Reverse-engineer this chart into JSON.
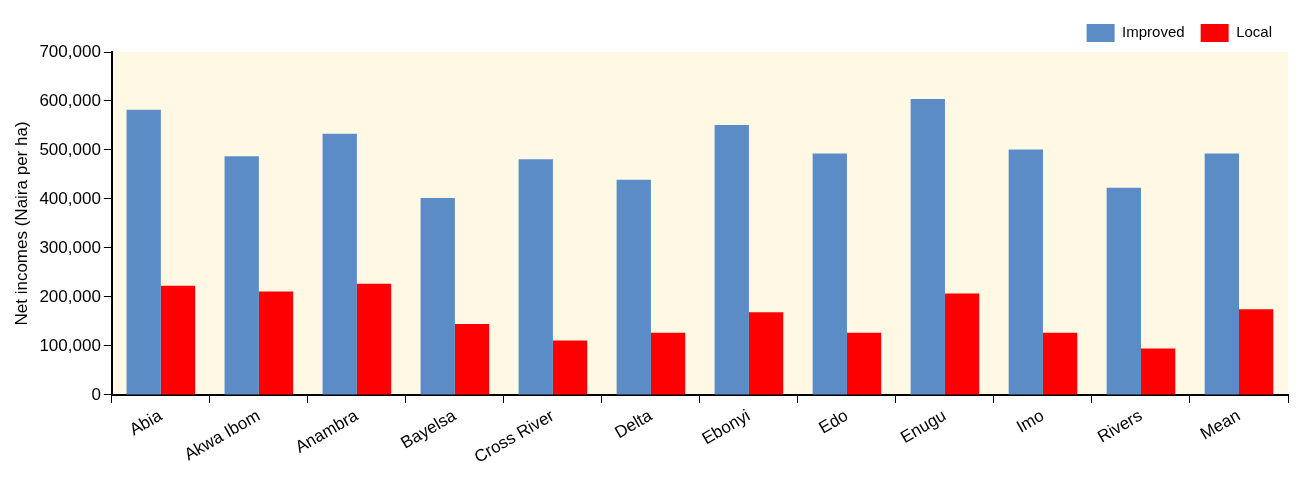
{
  "chart_data": {
    "type": "bar",
    "ylabel": "Net incomes (Naira per ha)",
    "categories": [
      "Abia",
      "Akwa Ibom",
      "Anambra",
      "Bayelsa",
      "Cross River",
      "Delta",
      "Ebonyi",
      "Edo",
      "Enugu",
      "Imo",
      "Rivers",
      "Mean"
    ],
    "series": [
      {
        "name": "Improved",
        "color": "#5b8cc6",
        "values": [
          582000,
          487000,
          533000,
          402000,
          481000,
          439000,
          551000,
          493000,
          604000,
          501000,
          423000,
          493000
        ]
      },
      {
        "name": "Local",
        "color": "#ff0000",
        "values": [
          223000,
          211000,
          227000,
          145000,
          111000,
          127000,
          169000,
          127000,
          207000,
          127000,
          95000,
          175000
        ]
      }
    ],
    "ylim": [
      0,
      700000
    ],
    "yticks": [
      {
        "value": 0,
        "label": "0"
      },
      {
        "value": 100000,
        "label": "100,000"
      },
      {
        "value": 200000,
        "label": "200,000"
      },
      {
        "value": 300000,
        "label": "300,000"
      },
      {
        "value": 400000,
        "label": "400,000"
      },
      {
        "value": 500000,
        "label": "500,000"
      },
      {
        "value": 600000,
        "label": "600,000"
      },
      {
        "value": 700000,
        "label": "700,000"
      }
    ],
    "grid": false,
    "legend": "top right"
  }
}
